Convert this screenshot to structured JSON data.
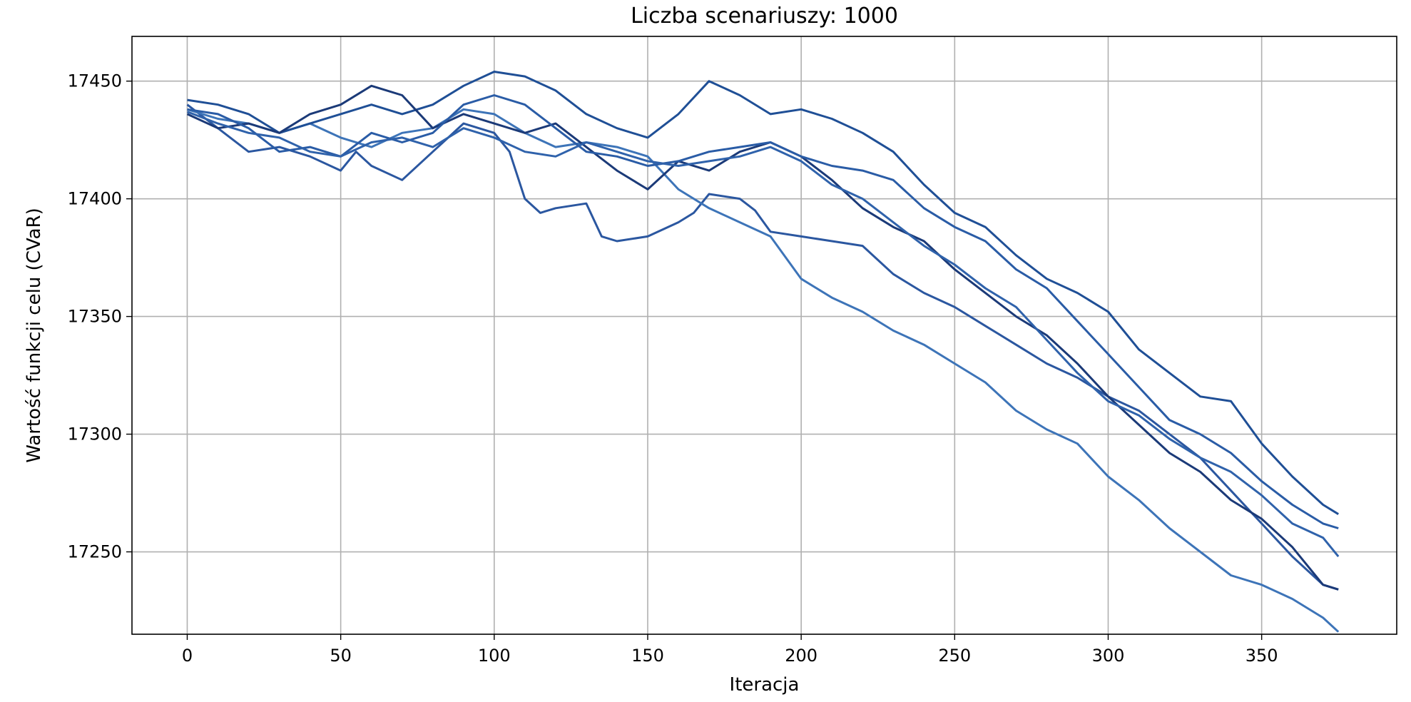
{
  "chart_data": {
    "type": "line",
    "title": "Liczba scenariuszy: 1000",
    "xlabel": "Iteracja",
    "ylabel": "Wartość funkcji celu (CVaR)",
    "xlim": [
      -18,
      394
    ],
    "ylim": [
      17215,
      17469
    ],
    "xticks": [
      0,
      50,
      100,
      150,
      200,
      250,
      300,
      350
    ],
    "yticks": [
      17250,
      17300,
      17350,
      17400,
      17450
    ],
    "grid": true,
    "legend": "none",
    "series": [
      {
        "color": "#2b57a0",
        "points": [
          [
            0,
            17440
          ],
          [
            10,
            17430
          ],
          [
            20,
            17420
          ],
          [
            30,
            17422
          ],
          [
            40,
            17418
          ],
          [
            50,
            17412
          ],
          [
            55,
            17420
          ],
          [
            60,
            17414
          ],
          [
            70,
            17408
          ],
          [
            80,
            17420
          ],
          [
            90,
            17432
          ],
          [
            100,
            17428
          ],
          [
            105,
            17420
          ],
          [
            110,
            17400
          ],
          [
            115,
            17394
          ],
          [
            120,
            17396
          ],
          [
            130,
            17398
          ],
          [
            135,
            17384
          ],
          [
            140,
            17382
          ],
          [
            150,
            17384
          ],
          [
            160,
            17390
          ],
          [
            165,
            17394
          ],
          [
            170,
            17402
          ],
          [
            180,
            17400
          ],
          [
            185,
            17395
          ],
          [
            190,
            17386
          ],
          [
            200,
            17384
          ],
          [
            210,
            17382
          ],
          [
            220,
            17380
          ],
          [
            230,
            17368
          ],
          [
            240,
            17360
          ],
          [
            250,
            17354
          ],
          [
            260,
            17346
          ],
          [
            270,
            17338
          ],
          [
            280,
            17330
          ],
          [
            290,
            17324
          ],
          [
            300,
            17316
          ],
          [
            310,
            17310
          ],
          [
            320,
            17300
          ],
          [
            330,
            17290
          ],
          [
            340,
            17276
          ],
          [
            350,
            17262
          ],
          [
            360,
            17248
          ],
          [
            370,
            17236
          ],
          [
            375,
            17234
          ]
        ]
      },
      {
        "color": "#3d74b8",
        "points": [
          [
            0,
            17438
          ],
          [
            10,
            17434
          ],
          [
            20,
            17432
          ],
          [
            30,
            17428
          ],
          [
            40,
            17432
          ],
          [
            50,
            17426
          ],
          [
            60,
            17422
          ],
          [
            70,
            17428
          ],
          [
            80,
            17430
          ],
          [
            90,
            17438
          ],
          [
            100,
            17436
          ],
          [
            110,
            17428
          ],
          [
            120,
            17422
          ],
          [
            130,
            17424
          ],
          [
            140,
            17422
          ],
          [
            150,
            17418
          ],
          [
            160,
            17404
          ],
          [
            170,
            17396
          ],
          [
            180,
            17390
          ],
          [
            190,
            17384
          ],
          [
            200,
            17366
          ],
          [
            210,
            17358
          ],
          [
            220,
            17352
          ],
          [
            230,
            17344
          ],
          [
            240,
            17338
          ],
          [
            250,
            17330
          ],
          [
            260,
            17322
          ],
          [
            270,
            17310
          ],
          [
            280,
            17302
          ],
          [
            290,
            17296
          ],
          [
            300,
            17282
          ],
          [
            310,
            17272
          ],
          [
            320,
            17260
          ],
          [
            330,
            17250
          ],
          [
            340,
            17240
          ],
          [
            350,
            17236
          ],
          [
            360,
            17230
          ],
          [
            370,
            17222
          ],
          [
            375,
            17216
          ]
        ]
      },
      {
        "color": "#1f4f96",
        "points": [
          [
            0,
            17442
          ],
          [
            10,
            17440
          ],
          [
            20,
            17436
          ],
          [
            30,
            17428
          ],
          [
            40,
            17432
          ],
          [
            50,
            17436
          ],
          [
            60,
            17440
          ],
          [
            70,
            17436
          ],
          [
            80,
            17440
          ],
          [
            90,
            17448
          ],
          [
            100,
            17454
          ],
          [
            110,
            17452
          ],
          [
            120,
            17446
          ],
          [
            130,
            17436
          ],
          [
            140,
            17430
          ],
          [
            150,
            17426
          ],
          [
            160,
            17436
          ],
          [
            170,
            17450
          ],
          [
            180,
            17444
          ],
          [
            190,
            17436
          ],
          [
            200,
            17438
          ],
          [
            210,
            17434
          ],
          [
            220,
            17428
          ],
          [
            230,
            17420
          ],
          [
            240,
            17406
          ],
          [
            250,
            17394
          ],
          [
            260,
            17388
          ],
          [
            270,
            17376
          ],
          [
            280,
            17366
          ],
          [
            290,
            17360
          ],
          [
            300,
            17352
          ],
          [
            310,
            17336
          ],
          [
            320,
            17326
          ],
          [
            330,
            17316
          ],
          [
            340,
            17314
          ],
          [
            350,
            17296
          ],
          [
            360,
            17282
          ],
          [
            370,
            17270
          ],
          [
            375,
            17266
          ]
        ]
      },
      {
        "color": "#1b3a78",
        "points": [
          [
            0,
            17436
          ],
          [
            10,
            17430
          ],
          [
            20,
            17432
          ],
          [
            30,
            17428
          ],
          [
            40,
            17436
          ],
          [
            50,
            17440
          ],
          [
            60,
            17448
          ],
          [
            70,
            17444
          ],
          [
            80,
            17430
          ],
          [
            90,
            17436
          ],
          [
            100,
            17432
          ],
          [
            110,
            17428
          ],
          [
            120,
            17432
          ],
          [
            130,
            17422
          ],
          [
            140,
            17412
          ],
          [
            150,
            17404
          ],
          [
            160,
            17416
          ],
          [
            170,
            17412
          ],
          [
            180,
            17420
          ],
          [
            190,
            17424
          ],
          [
            200,
            17418
          ],
          [
            210,
            17408
          ],
          [
            220,
            17396
          ],
          [
            230,
            17388
          ],
          [
            240,
            17382
          ],
          [
            250,
            17370
          ],
          [
            260,
            17360
          ],
          [
            270,
            17350
          ],
          [
            280,
            17342
          ],
          [
            290,
            17330
          ],
          [
            300,
            17316
          ],
          [
            310,
            17304
          ],
          [
            320,
            17292
          ],
          [
            330,
            17284
          ],
          [
            340,
            17272
          ],
          [
            350,
            17264
          ],
          [
            360,
            17252
          ],
          [
            370,
            17236
          ],
          [
            375,
            17234
          ]
        ]
      },
      {
        "color": "#2a5ca6",
        "points": [
          [
            0,
            17438
          ],
          [
            10,
            17436
          ],
          [
            20,
            17430
          ],
          [
            30,
            17420
          ],
          [
            40,
            17422
          ],
          [
            50,
            17418
          ],
          [
            60,
            17428
          ],
          [
            70,
            17424
          ],
          [
            80,
            17428
          ],
          [
            90,
            17440
          ],
          [
            100,
            17444
          ],
          [
            110,
            17440
          ],
          [
            120,
            17430
          ],
          [
            130,
            17420
          ],
          [
            140,
            17418
          ],
          [
            150,
            17414
          ],
          [
            160,
            17416
          ],
          [
            170,
            17420
          ],
          [
            180,
            17422
          ],
          [
            190,
            17424
          ],
          [
            200,
            17418
          ],
          [
            210,
            17414
          ],
          [
            220,
            17412
          ],
          [
            230,
            17408
          ],
          [
            240,
            17396
          ],
          [
            250,
            17388
          ],
          [
            260,
            17382
          ],
          [
            270,
            17370
          ],
          [
            280,
            17362
          ],
          [
            290,
            17348
          ],
          [
            300,
            17334
          ],
          [
            310,
            17320
          ],
          [
            320,
            17306
          ],
          [
            330,
            17300
          ],
          [
            340,
            17292
          ],
          [
            350,
            17280
          ],
          [
            360,
            17270
          ],
          [
            370,
            17262
          ],
          [
            375,
            17260
          ]
        ]
      },
      {
        "color": "#2f62ab",
        "points": [
          [
            0,
            17437
          ],
          [
            10,
            17432
          ],
          [
            20,
            17428
          ],
          [
            30,
            17426
          ],
          [
            40,
            17420
          ],
          [
            50,
            17418
          ],
          [
            60,
            17424
          ],
          [
            70,
            17426
          ],
          [
            80,
            17422
          ],
          [
            90,
            17430
          ],
          [
            100,
            17426
          ],
          [
            110,
            17420
          ],
          [
            120,
            17418
          ],
          [
            130,
            17424
          ],
          [
            140,
            17420
          ],
          [
            150,
            17416
          ],
          [
            160,
            17414
          ],
          [
            170,
            17416
          ],
          [
            180,
            17418
          ],
          [
            190,
            17422
          ],
          [
            200,
            17416
          ],
          [
            210,
            17406
          ],
          [
            220,
            17400
          ],
          [
            230,
            17390
          ],
          [
            240,
            17380
          ],
          [
            250,
            17372
          ],
          [
            260,
            17362
          ],
          [
            270,
            17354
          ],
          [
            280,
            17340
          ],
          [
            290,
            17326
          ],
          [
            300,
            17314
          ],
          [
            310,
            17308
          ],
          [
            320,
            17298
          ],
          [
            330,
            17290
          ],
          [
            340,
            17284
          ],
          [
            350,
            17274
          ],
          [
            360,
            17262
          ],
          [
            370,
            17256
          ],
          [
            375,
            17248
          ]
        ]
      }
    ]
  }
}
